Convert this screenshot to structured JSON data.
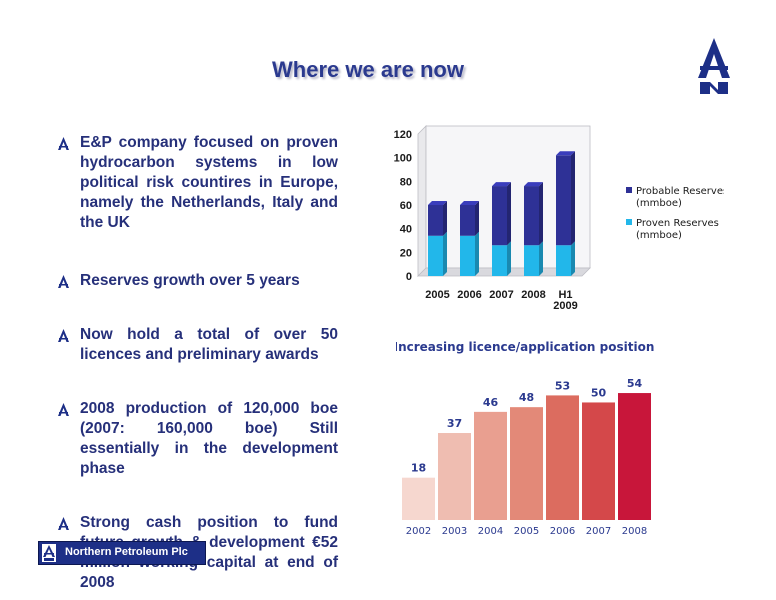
{
  "slide": {
    "title": "Where we are now",
    "bullets": [
      "E&P company focused on proven hydrocarbon systems in low political risk countires in Europe, namely the Netherlands, Italy and the UK",
      "Reserves growth over 5 years",
      "Now hold a total of over 50 licences and preliminary awards",
      "2008 production of 120,000 boe (2007: 160,000 boe) Still essentially in the development phase",
      "Strong cash position to fund future growth & development €52 million working capital at end of 2008"
    ],
    "footer_company": "Northern Petroleum Plc",
    "colors": {
      "title": "#2b3a8f",
      "text": "#26307a",
      "probable": "#2e3196",
      "proven": "#22b7ea",
      "footer": "#1d2f87"
    }
  },
  "chart_data": [
    {
      "type": "bar",
      "stacked": true,
      "categories": [
        "2005",
        "2006",
        "2007",
        "2008",
        "H1 2009"
      ],
      "series": [
        {
          "name": "Proven Reserves (mmboe)",
          "values": [
            34,
            34,
            26,
            26,
            26
          ],
          "color": "#22b7ea"
        },
        {
          "name": "Probable Reserves (mmboe)",
          "values": [
            26,
            26,
            50,
            50,
            76
          ],
          "color": "#2e3196"
        }
      ],
      "ylim": [
        0,
        120
      ],
      "yticks": [
        0,
        20,
        40,
        60,
        80,
        100,
        120
      ],
      "grid": false,
      "legend": "right"
    },
    {
      "type": "bar",
      "title": "Increasing licence/application position",
      "categories": [
        "2002",
        "2003",
        "2004",
        "2005",
        "2006",
        "2007",
        "2008"
      ],
      "values": [
        18,
        37,
        46,
        48,
        53,
        50,
        54
      ],
      "colors": [
        "#f6d7cf",
        "#efbdb1",
        "#e99f90",
        "#e38978",
        "#dc6c5f",
        "#d4484a",
        "#c8163a"
      ],
      "ylim": [
        0,
        60
      ],
      "data_labels": true
    }
  ]
}
